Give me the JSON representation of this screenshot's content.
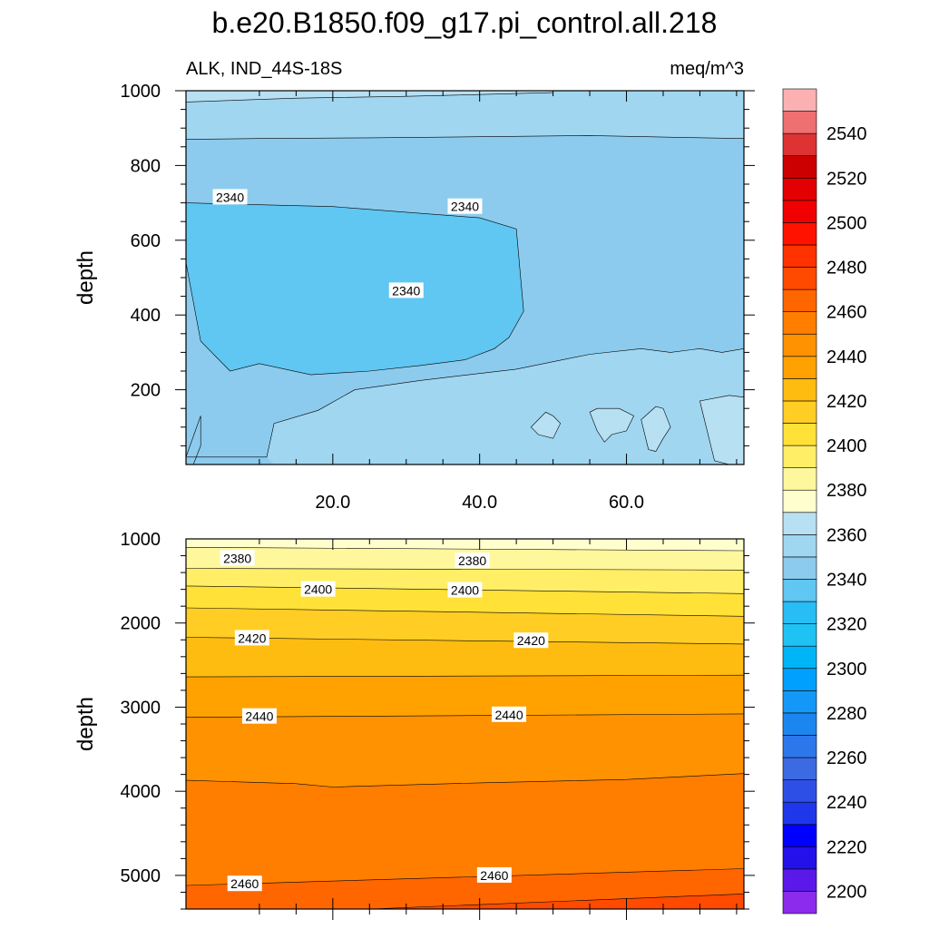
{
  "title": "b.e20.B1850.f09_g17.pi_control.all.218",
  "subtitle_left": "ALK, IND_44S-18S",
  "subtitle_right": "meq/m^3",
  "colors": {
    "bands": [
      "#8C2BEB",
      "#5A19E8",
      "#2410E8",
      "#0000FF",
      "#1F37EA",
      "#2E4FE6",
      "#3C6AE2",
      "#2C78EA",
      "#1C86F0",
      "#1597F8",
      "#00A0FF",
      "#00B4F8",
      "#1EC3F3",
      "#28BDF5",
      "#60C6F2",
      "#8CCBED",
      "#A0D6F0",
      "#B7E0F3",
      "#FFFFCE",
      "#FFF79C",
      "#FFEE66",
      "#FFE138",
      "#FFCD24",
      "#FFBC10",
      "#FFA200",
      "#FF9200",
      "#FF7E00",
      "#FF6600",
      "#FF4A00",
      "#FF3200",
      "#FF1200",
      "#F00000",
      "#E20000",
      "#CC0000",
      "#DD3333",
      "#EE7070",
      "#FBB1B1"
    ]
  },
  "chart_data": [
    {
      "type": "contour",
      "panel": "upper",
      "ylabel": "depth",
      "xlabel": "",
      "ylim": [
        1000,
        0
      ],
      "xlim": [
        0,
        76
      ],
      "yticks": [
        200,
        400,
        600,
        800,
        1000
      ],
      "xticks": [
        20,
        40,
        60
      ],
      "xtick_labels": [
        "20.0",
        "40.0",
        "60.0"
      ],
      "band_edges": [
        2330,
        2340,
        2350,
        2360
      ],
      "boundaries": [
        {
          "value": 2340,
          "points": [
            [
              0,
              540
            ],
            [
              2,
              330
            ],
            [
              6,
              250
            ],
            [
              10,
              270
            ],
            [
              17,
              240
            ],
            [
              25,
              250
            ],
            [
              32,
              265
            ],
            [
              38,
              280
            ],
            [
              42,
              310
            ],
            [
              44,
              340
            ],
            [
              46,
              410
            ],
            [
              45,
              630
            ],
            [
              40,
              660
            ],
            [
              30,
              675
            ],
            [
              20,
              690
            ],
            [
              10,
              695
            ],
            [
              0,
              700
            ]
          ]
        },
        {
          "value": 2350,
          "points": [
            [
              0,
              20
            ],
            [
              11,
              20
            ],
            [
              12,
              110
            ],
            [
              18,
              145
            ],
            [
              23,
              200
            ],
            [
              32,
              225
            ],
            [
              45,
              255
            ],
            [
              55,
              295
            ],
            [
              62,
              310
            ],
            [
              66,
              300
            ],
            [
              70,
              310
            ],
            [
              73,
              300
            ],
            [
              76,
              310
            ]
          ]
        },
        {
          "value": 2350,
          "points": [
            [
              0,
              870
            ],
            [
              10,
              872
            ],
            [
              25,
              874
            ],
            [
              40,
              877
            ],
            [
              55,
              880
            ],
            [
              65,
              876
            ],
            [
              76,
              872
            ]
          ]
        },
        {
          "value": 2360,
          "points": [
            [
              0,
              970
            ],
            [
              15,
              980
            ],
            [
              30,
              985
            ],
            [
              50,
              995
            ]
          ]
        }
      ],
      "contour_labels": [
        {
          "text": "2340",
          "x": 30,
          "y": 465
        },
        {
          "text": "2340",
          "x": 38,
          "y": 690
        },
        {
          "text": "2340",
          "x": 6,
          "y": 715
        }
      ]
    },
    {
      "type": "contour",
      "panel": "lower",
      "ylabel": "depth",
      "xlabel": "",
      "ylim": [
        1000,
        5400
      ],
      "xlim": [
        0,
        76
      ],
      "yticks": [
        1000,
        2000,
        3000,
        4000,
        5000
      ],
      "xticks": [
        20,
        40,
        60
      ],
      "band_edges": [
        2360,
        2370,
        2380,
        2390,
        2400,
        2410,
        2420,
        2430,
        2440,
        2450,
        2460,
        2470
      ],
      "boundaries": [
        {
          "value": 2370,
          "points": [
            [
              0,
              1100
            ],
            [
              76,
              1140
            ]
          ]
        },
        {
          "value": 2380,
          "points": [
            [
              0,
              1350
            ],
            [
              76,
              1370
            ]
          ]
        },
        {
          "value": 2390,
          "points": [
            [
              0,
              1560
            ],
            [
              76,
              1650
            ]
          ]
        },
        {
          "value": 2400,
          "points": [
            [
              0,
              1820
            ],
            [
              76,
              1920
            ]
          ]
        },
        {
          "value": 2410,
          "points": [
            [
              0,
              2170
            ],
            [
              76,
              2250
            ]
          ]
        },
        {
          "value": 2420,
          "points": [
            [
              0,
              2640
            ],
            [
              76,
              2620
            ]
          ]
        },
        {
          "value": 2430,
          "points": [
            [
              0,
              3120
            ],
            [
              76,
              3080
            ]
          ]
        },
        {
          "value": 2440,
          "points": [
            [
              0,
              3870
            ],
            [
              15,
              3910
            ],
            [
              20,
              3950
            ],
            [
              40,
              3900
            ],
            [
              60,
              3860
            ],
            [
              76,
              3790
            ]
          ]
        },
        {
          "value": 2450,
          "points": [
            [
              0,
              5120
            ],
            [
              76,
              4920
            ]
          ]
        },
        {
          "value": 2460,
          "points": [
            [
              25,
              5400
            ],
            [
              76,
              5220
            ]
          ]
        }
      ],
      "contour_labels": [
        {
          "text": "2380",
          "x": 7,
          "y": 1230
        },
        {
          "text": "2380",
          "x": 39,
          "y": 1260
        },
        {
          "text": "2400",
          "x": 18,
          "y": 1600
        },
        {
          "text": "2400",
          "x": 38,
          "y": 1610
        },
        {
          "text": "2420",
          "x": 9,
          "y": 2180
        },
        {
          "text": "2420",
          "x": 47,
          "y": 2210
        },
        {
          "text": "2440",
          "x": 10,
          "y": 3110
        },
        {
          "text": "2440",
          "x": 44,
          "y": 3090
        },
        {
          "text": "2460",
          "x": 8,
          "y": 5100
        },
        {
          "text": "2460",
          "x": 42,
          "y": 5000
        }
      ]
    },
    {
      "type": "colorbar",
      "min": 2190,
      "max": 2560,
      "step": 10,
      "labels": [
        "2200",
        "2220",
        "2240",
        "2260",
        "2280",
        "2300",
        "2320",
        "2340",
        "2360",
        "2380",
        "2400",
        "2420",
        "2440",
        "2460",
        "2480",
        "2500",
        "2520",
        "2540"
      ]
    }
  ]
}
